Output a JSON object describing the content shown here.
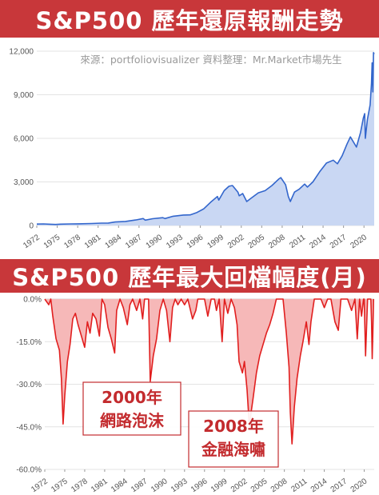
{
  "titles": {
    "top": "S&P500 歷年還原報酬走勢",
    "bottom": "S&P500 歷年最大回檔幅度(月)"
  },
  "source_note": "來源：portfoliovisualizer 資料整理：Mr.Market市場先生",
  "colors": {
    "banner_bg": "#c8373a",
    "banner_text": "#ffffff",
    "line_blue": "#3366cc",
    "area_blue": "#c9d7f3",
    "drawdown_red": "#e11f1f",
    "drawdown_fill": "#f6b8b8",
    "annotation_text": "#c32b2e"
  },
  "chart_data": [
    {
      "type": "area",
      "title": "S&P500 歷年還原報酬走勢",
      "x_tick_labels": [
        "1972",
        "1975",
        "1978",
        "1981",
        "1984",
        "1987",
        "1990",
        "1993",
        "1996",
        "1999",
        "2002",
        "2005",
        "2008",
        "2011",
        "2014",
        "2017",
        "2020"
      ],
      "y_tick_labels": [
        "0",
        "3,000",
        "6,000",
        "9,000",
        "12,000"
      ],
      "ylim": [
        0,
        12000
      ],
      "xlim": [
        1972,
        2021.5
      ],
      "grid": true,
      "series": [
        {
          "points": [
            [
              1972.0,
              100
            ],
            [
              1973.0,
              110
            ],
            [
              1974.0,
              90
            ],
            [
              1974.75,
              70
            ],
            [
              1975.5,
              95
            ],
            [
              1977.0,
              110
            ],
            [
              1978.0,
              115
            ],
            [
              1980.0,
              140
            ],
            [
              1981.5,
              165
            ],
            [
              1982.5,
              170
            ],
            [
              1983.5,
              240
            ],
            [
              1985.0,
              280
            ],
            [
              1986.5,
              380
            ],
            [
              1987.6,
              480
            ],
            [
              1987.9,
              370
            ],
            [
              1989.0,
              470
            ],
            [
              1990.5,
              540
            ],
            [
              1990.8,
              480
            ],
            [
              1992.0,
              640
            ],
            [
              1993.5,
              720
            ],
            [
              1994.5,
              730
            ],
            [
              1995.5,
              900
            ],
            [
              1996.5,
              1150
            ],
            [
              1997.5,
              1600
            ],
            [
              1998.5,
              2000
            ],
            [
              1998.7,
              1750
            ],
            [
              1999.5,
              2400
            ],
            [
              2000.2,
              2700
            ],
            [
              2000.7,
              2750
            ],
            [
              2001.5,
              2300
            ],
            [
              2001.7,
              2050
            ],
            [
              2002.2,
              2200
            ],
            [
              2002.8,
              1650
            ],
            [
              2003.5,
              1900
            ],
            [
              2004.5,
              2250
            ],
            [
              2005.5,
              2400
            ],
            [
              2006.5,
              2750
            ],
            [
              2007.5,
              3200
            ],
            [
              2007.8,
              3300
            ],
            [
              2008.5,
              2800
            ],
            [
              2008.9,
              2000
            ],
            [
              2009.2,
              1650
            ],
            [
              2009.8,
              2300
            ],
            [
              2010.5,
              2500
            ],
            [
              2011.3,
              2850
            ],
            [
              2011.7,
              2650
            ],
            [
              2012.5,
              3000
            ],
            [
              2013.5,
              3700
            ],
            [
              2014.5,
              4300
            ],
            [
              2015.5,
              4500
            ],
            [
              2016.1,
              4250
            ],
            [
              2016.8,
              4800
            ],
            [
              2017.5,
              5600
            ],
            [
              2018.0,
              6100
            ],
            [
              2018.9,
              5400
            ],
            [
              2019.5,
              6400
            ],
            [
              2019.9,
              7400
            ],
            [
              2020.1,
              7700
            ],
            [
              2020.2,
              6000
            ],
            [
              2020.5,
              7300
            ],
            [
              2020.9,
              8300
            ],
            [
              2021.1,
              9800
            ],
            [
              2021.2,
              11200
            ],
            [
              2021.3,
              9200
            ],
            [
              2021.4,
              11900
            ],
            [
              2021.5,
              11800
            ]
          ]
        }
      ]
    },
    {
      "type": "area",
      "title": "S&P500 歷年最大回檔幅度(月)",
      "x_tick_labels": [
        "1972",
        "1975",
        "1978",
        "1981",
        "1984",
        "1987",
        "1990",
        "1993",
        "1996",
        "1999",
        "2002",
        "2005",
        "2008",
        "2011",
        "2014",
        "2017",
        "2020"
      ],
      "y_tick_labels": [
        "0.0%",
        "-15.0%",
        "-30.0%",
        "-45.0%",
        "-60.0%"
      ],
      "ylim": [
        -60,
        0
      ],
      "xlim": [
        1972,
        2021.5
      ],
      "grid": true,
      "series": [
        {
          "points": [
            [
              1972.0,
              0
            ],
            [
              1972.6,
              -2
            ],
            [
              1972.9,
              0
            ],
            [
              1973.2,
              -6
            ],
            [
              1973.7,
              -14
            ],
            [
              1974.2,
              -18
            ],
            [
              1974.5,
              -28
            ],
            [
              1974.75,
              -44
            ],
            [
              1975.0,
              -34
            ],
            [
              1975.4,
              -22
            ],
            [
              1975.8,
              -16
            ],
            [
              1976.2,
              -7
            ],
            [
              1976.6,
              -5
            ],
            [
              1977.0,
              -9
            ],
            [
              1977.5,
              -13
            ],
            [
              1978.0,
              -17
            ],
            [
              1978.4,
              -8
            ],
            [
              1978.8,
              -12
            ],
            [
              1979.2,
              -5
            ],
            [
              1979.7,
              -7
            ],
            [
              1980.2,
              -13
            ],
            [
              1980.6,
              0
            ],
            [
              1981.0,
              -2
            ],
            [
              1981.5,
              -10
            ],
            [
              1982.0,
              -14
            ],
            [
              1982.5,
              -19
            ],
            [
              1982.8,
              -4
            ],
            [
              1983.3,
              0
            ],
            [
              1983.8,
              -3
            ],
            [
              1984.4,
              -9
            ],
            [
              1984.8,
              -2
            ],
            [
              1985.2,
              0
            ],
            [
              1985.8,
              -4
            ],
            [
              1986.3,
              0
            ],
            [
              1986.7,
              -7
            ],
            [
              1987.0,
              0
            ],
            [
              1987.6,
              0
            ],
            [
              1987.85,
              -29
            ],
            [
              1988.3,
              -20
            ],
            [
              1988.8,
              -14
            ],
            [
              1989.3,
              -4
            ],
            [
              1989.8,
              0
            ],
            [
              1990.3,
              -4
            ],
            [
              1990.8,
              -15
            ],
            [
              1991.2,
              -3
            ],
            [
              1991.6,
              0
            ],
            [
              1992.0,
              -2
            ],
            [
              1992.5,
              0
            ],
            [
              1993.0,
              -2
            ],
            [
              1993.5,
              0
            ],
            [
              1994.2,
              -7
            ],
            [
              1994.7,
              -4
            ],
            [
              1995.0,
              0
            ],
            [
              1996.0,
              0
            ],
            [
              1996.5,
              -6
            ],
            [
              1997.0,
              0
            ],
            [
              1997.5,
              0
            ],
            [
              1997.8,
              -4
            ],
            [
              1998.2,
              0
            ],
            [
              1998.65,
              -15
            ],
            [
              1999.0,
              0
            ],
            [
              1999.5,
              -5
            ],
            [
              2000.0,
              0
            ],
            [
              2000.5,
              -3
            ],
            [
              2000.9,
              -9
            ],
            [
              2001.2,
              -22
            ],
            [
              2001.7,
              -26
            ],
            [
              2002.0,
              -22
            ],
            [
              2002.4,
              -32
            ],
            [
              2002.75,
              -45
            ],
            [
              2003.0,
              -40
            ],
            [
              2003.3,
              -35
            ],
            [
              2003.8,
              -26
            ],
            [
              2004.3,
              -20
            ],
            [
              2004.8,
              -16
            ],
            [
              2005.3,
              -12
            ],
            [
              2005.8,
              -9
            ],
            [
              2006.3,
              -5
            ],
            [
              2006.8,
              0
            ],
            [
              2007.3,
              0
            ],
            [
              2007.8,
              0
            ],
            [
              2008.3,
              -12
            ],
            [
              2008.7,
              -24
            ],
            [
              2008.9,
              -40
            ],
            [
              2009.15,
              -51
            ],
            [
              2009.5,
              -38
            ],
            [
              2009.9,
              -28
            ],
            [
              2010.4,
              -20
            ],
            [
              2010.8,
              -15
            ],
            [
              2011.3,
              -8
            ],
            [
              2011.7,
              -16
            ],
            [
              2012.0,
              -8
            ],
            [
              2012.5,
              0
            ],
            [
              2013.0,
              0
            ],
            [
              2013.5,
              0
            ],
            [
              2014.0,
              -3
            ],
            [
              2014.5,
              0
            ],
            [
              2015.0,
              0
            ],
            [
              2015.6,
              -8
            ],
            [
              2016.1,
              -11
            ],
            [
              2016.5,
              0
            ],
            [
              2017.0,
              0
            ],
            [
              2017.5,
              0
            ],
            [
              2018.1,
              -4
            ],
            [
              2018.6,
              0
            ],
            [
              2018.95,
              -14
            ],
            [
              2019.3,
              0
            ],
            [
              2019.6,
              -6
            ],
            [
              2019.9,
              0
            ],
            [
              2020.0,
              0
            ],
            [
              2020.2,
              -20
            ],
            [
              2020.5,
              0
            ],
            [
              2020.9,
              0
            ],
            [
              2021.0,
              0
            ],
            [
              2021.1,
              -8
            ],
            [
              2021.2,
              -21
            ],
            [
              2021.3,
              -12
            ],
            [
              2021.4,
              0
            ]
          ]
        }
      ],
      "annotations": [
        {
          "line1": "2000年",
          "line2": "網路泡沫"
        },
        {
          "line1": "2008年",
          "line2": "金融海嘯"
        }
      ]
    }
  ]
}
